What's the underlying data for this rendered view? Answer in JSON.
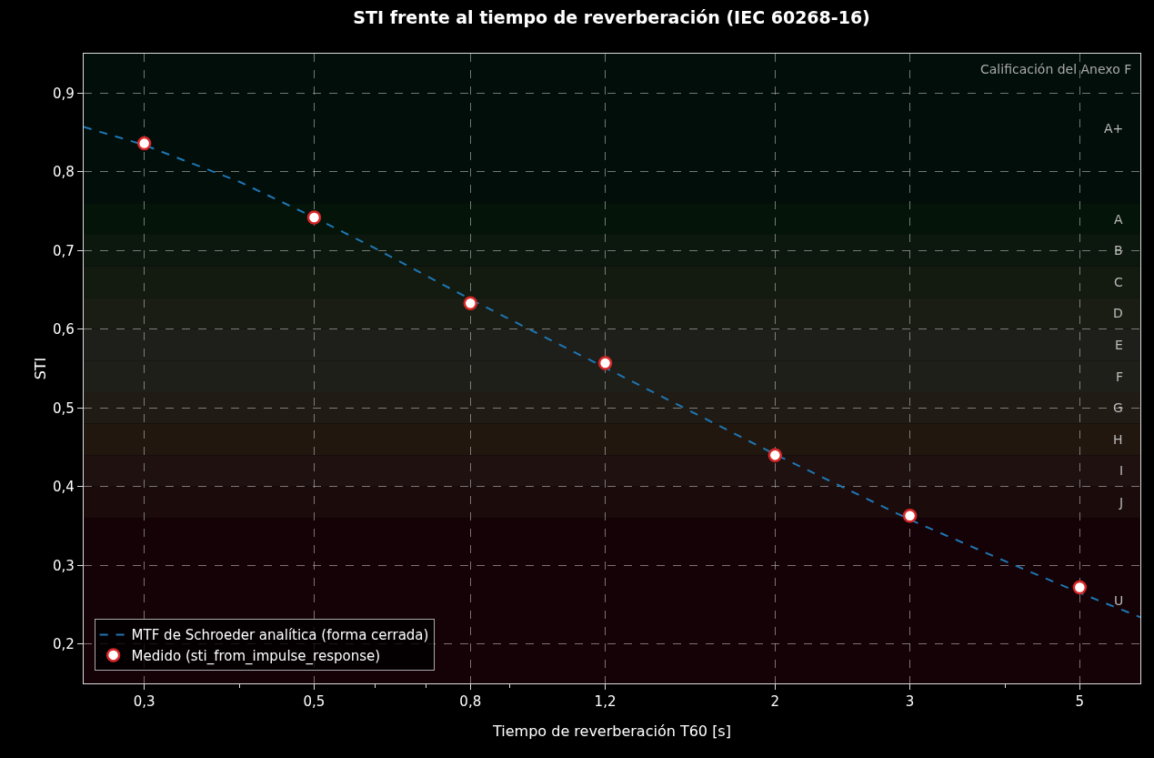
{
  "chart_data": {
    "type": "line",
    "title": "STI frente al tiempo de reverberación (IEC 60268-16)",
    "xlabel": "Tiempo de reverberación T60 [s]",
    "ylabel": "STI",
    "log": "x",
    "xlim": [
      0.25,
      6
    ],
    "ylim": [
      0.15,
      0.95
    ],
    "xticks": [
      {
        "value": 0.3,
        "label": "0,3"
      },
      {
        "value": 0.4,
        "label": null
      },
      {
        "value": 0.5,
        "label": "0,5"
      },
      {
        "value": 0.6,
        "label": null
      },
      {
        "value": 0.7,
        "label": null
      },
      {
        "value": 0.8,
        "label": "0,8"
      },
      {
        "value": 0.9,
        "label": null
      },
      {
        "value": 1.2,
        "label": "1,2"
      },
      {
        "value": 2,
        "label": "2"
      },
      {
        "value": 3,
        "label": "3"
      },
      {
        "value": 4,
        "label": null
      },
      {
        "value": 5,
        "label": "5"
      }
    ],
    "yticks": [
      {
        "value": 0.2,
        "label": "0,2"
      },
      {
        "value": 0.3,
        "label": "0,3"
      },
      {
        "value": 0.4,
        "label": "0,4"
      },
      {
        "value": 0.5,
        "label": "0,5"
      },
      {
        "value": 0.6,
        "label": "0,6"
      },
      {
        "value": 0.7,
        "label": "0,7"
      },
      {
        "value": 0.8,
        "label": "0,8"
      },
      {
        "value": 0.9,
        "label": "0,9"
      }
    ],
    "grid": true,
    "legend": "bottom left",
    "series": [
      {
        "name": "MTF de Schroeder analítica (forma cerrada)",
        "type": "line",
        "color": "#1f77b4",
        "line_style": "dashed",
        "marker": "none",
        "x": [
          0.25,
          0.3,
          0.4,
          0.5,
          0.6,
          0.8,
          1.0,
          1.2,
          1.5,
          2,
          3,
          4,
          5,
          6
        ],
        "values": [
          0.857,
          0.834,
          0.787,
          0.742,
          0.703,
          0.638,
          0.59,
          0.551,
          0.503,
          0.441,
          0.358,
          0.305,
          0.265,
          0.234
        ]
      },
      {
        "name": "Medido (sti_from_impulse_response)",
        "type": "scatter",
        "color": "#d62728",
        "marker": "circle",
        "x": [
          0.3,
          0.5,
          0.8,
          1.2,
          2,
          3,
          5
        ],
        "values": [
          0.836,
          0.742,
          0.633,
          0.557,
          0.44,
          0.363,
          0.272
        ]
      }
    ],
    "bands": [
      {
        "axis": "y",
        "from": 0.76,
        "to": 0.95,
        "label": "A+",
        "color": "#020e0a"
      },
      {
        "axis": "y",
        "from": 0.72,
        "to": 0.76,
        "label": "A",
        "color": "#051409"
      },
      {
        "axis": "y",
        "from": 0.68,
        "to": 0.72,
        "label": "B",
        "color": "#0c170e"
      },
      {
        "axis": "y",
        "from": 0.64,
        "to": 0.68,
        "label": "C",
        "color": "#131a10"
      },
      {
        "axis": "y",
        "from": 0.6,
        "to": 0.64,
        "label": "D",
        "color": "#1a1d14"
      },
      {
        "axis": "y",
        "from": 0.56,
        "to": 0.6,
        "label": "E",
        "color": "#1e1f1a"
      },
      {
        "axis": "y",
        "from": 0.52,
        "to": 0.56,
        "label": "F",
        "color": "#1f1f1a"
      },
      {
        "axis": "y",
        "from": 0.48,
        "to": 0.52,
        "label": "G",
        "color": "#201b14"
      },
      {
        "axis": "y",
        "from": 0.44,
        "to": 0.48,
        "label": "H",
        "color": "#21170f"
      },
      {
        "axis": "y",
        "from": 0.4,
        "to": 0.44,
        "label": "I",
        "color": "#1e1110"
      },
      {
        "axis": "y",
        "from": 0.36,
        "to": 0.4,
        "label": "J",
        "color": "#1b0b0b"
      },
      {
        "axis": "y",
        "from": 0.15,
        "to": 0.36,
        "label": "U",
        "color": "#150206"
      }
    ],
    "annotations": [
      "Calificación del Anexo F"
    ]
  }
}
